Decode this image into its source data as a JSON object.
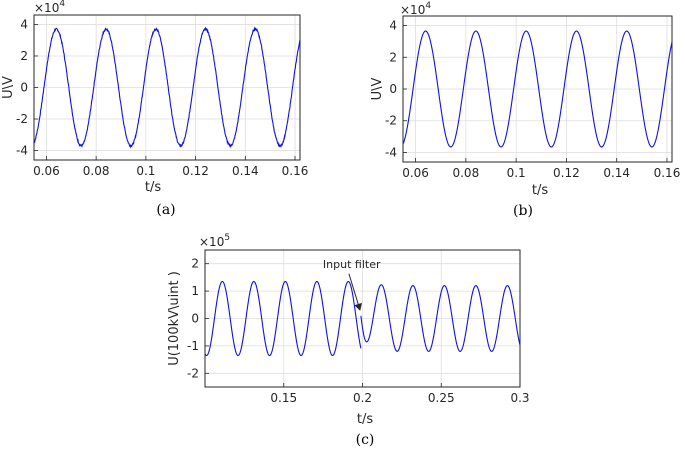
{
  "colors": {
    "series": "#1010e0"
  },
  "chart_data": [
    {
      "panel": "a",
      "type": "line",
      "caption": "(a)",
      "xlabel": "t/s",
      "ylabel": "U\\V",
      "exponent_base": "×10",
      "exponent_power": "4",
      "xlim": [
        0.055,
        0.162
      ],
      "ylim": [
        -4.6,
        4.6
      ],
      "xticks": [
        0.06,
        0.08,
        0.1,
        0.12,
        0.14,
        0.16
      ],
      "xtick_labels": [
        "0.06",
        "0.08",
        "0.1",
        "0.12",
        "0.14",
        "0.16"
      ],
      "yticks": [
        -4,
        -2,
        0,
        2,
        4
      ],
      "ytick_labels": [
        "-4",
        "-2",
        "0",
        "2",
        "4"
      ],
      "grid": true,
      "series": [
        {
          "signal": {
            "amplitude": 3.7,
            "frequency_hz": 50,
            "peak_time": 0.064,
            "noise": 0.06,
            "t_start": 0.055,
            "t_end": 0.162
          }
        }
      ]
    },
    {
      "panel": "b",
      "type": "line",
      "caption": "(b)",
      "xlabel": "t/s",
      "ylabel": "U\\V",
      "exponent_base": "×10",
      "exponent_power": "4",
      "xlim": [
        0.055,
        0.162
      ],
      "ylim": [
        -4.6,
        4.6
      ],
      "xticks": [
        0.06,
        0.08,
        0.1,
        0.12,
        0.14,
        0.16
      ],
      "xtick_labels": [
        "0.06",
        "0.08",
        "0.1",
        "0.12",
        "0.14",
        "0.16"
      ],
      "yticks": [
        -4,
        -2,
        0,
        2,
        4
      ],
      "ytick_labels": [
        "-4",
        "-2",
        "0",
        "2",
        "4"
      ],
      "grid": true,
      "series": [
        {
          "signal": {
            "amplitude": 3.65,
            "frequency_hz": 50,
            "peak_time": 0.064,
            "noise": 0.0,
            "t_start": 0.055,
            "t_end": 0.162
          }
        }
      ]
    },
    {
      "panel": "c",
      "type": "line",
      "caption": "(c)",
      "xlabel": "t/s",
      "ylabel": "U(100kV\\uint )",
      "exponent_base": "×10",
      "exponent_power": "5",
      "xlim": [
        0.1,
        0.3
      ],
      "ylim": [
        -2.5,
        2.5
      ],
      "xticks": [
        0.15,
        0.2,
        0.25,
        0.3
      ],
      "xtick_labels": [
        "0.15",
        "0.2",
        "0.25",
        "0.3"
      ],
      "yticks": [
        -2,
        -1,
        0,
        1,
        2
      ],
      "ytick_labels": [
        "-2",
        "-1",
        "0",
        "1",
        "2"
      ],
      "grid": true,
      "annotation": {
        "text": "Input filter",
        "x": 0.199,
        "y": 0.1
      },
      "series": [
        {
          "signal": {
            "amplitude": 1.35,
            "frequency_hz": 50,
            "peak_time": 0.111,
            "noise": 0.0,
            "t_start": 0.1,
            "t_end": 0.199
          }
        },
        {
          "signal": {
            "amplitude": 1.2,
            "frequency_hz": 50,
            "peak_time": 0.212,
            "noise": 0.0,
            "t_start": 0.199,
            "t_end": 0.3,
            "transient": {
              "start_value": 0.1,
              "decay_s": 0.004
            }
          }
        }
      ]
    }
  ]
}
